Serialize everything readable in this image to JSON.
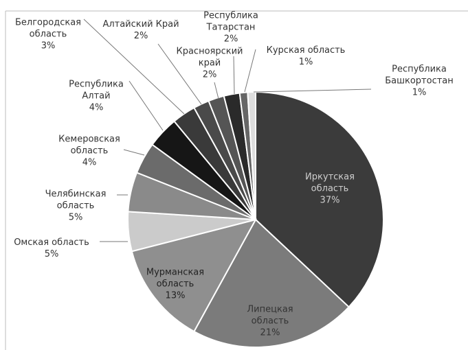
{
  "chart_data": {
    "type": "pie",
    "categories": [
      "Иркутская область",
      "Липецкая область",
      "Мурманская область",
      "Омская область",
      "Челябинская область",
      "Кемеровская область",
      "Республика Алтай",
      "Белгородская область",
      "Алтайский Край",
      "Красноярский край",
      "Республика Татарстан",
      "Курская область",
      "Республика Башкортостан"
    ],
    "values": [
      37,
      21,
      13,
      5,
      5,
      4,
      4,
      3,
      2,
      2,
      2,
      1,
      1
    ],
    "value_labels": [
      "37%",
      "21%",
      "13%",
      "5%",
      "5%",
      "4%",
      "4%",
      "3%",
      "2%",
      "2%",
      "2%",
      "1%",
      "1%"
    ],
    "colors": [
      "#3b3b3b",
      "#7b7b7b",
      "#8f8f8f",
      "#cbcbcb",
      "#8a8a8a",
      "#6b6b6b",
      "#161616",
      "#3a3a3a",
      "#4a4a4a",
      "#555555",
      "#2a2a2a",
      "#666666",
      "#dddddd"
    ]
  }
}
